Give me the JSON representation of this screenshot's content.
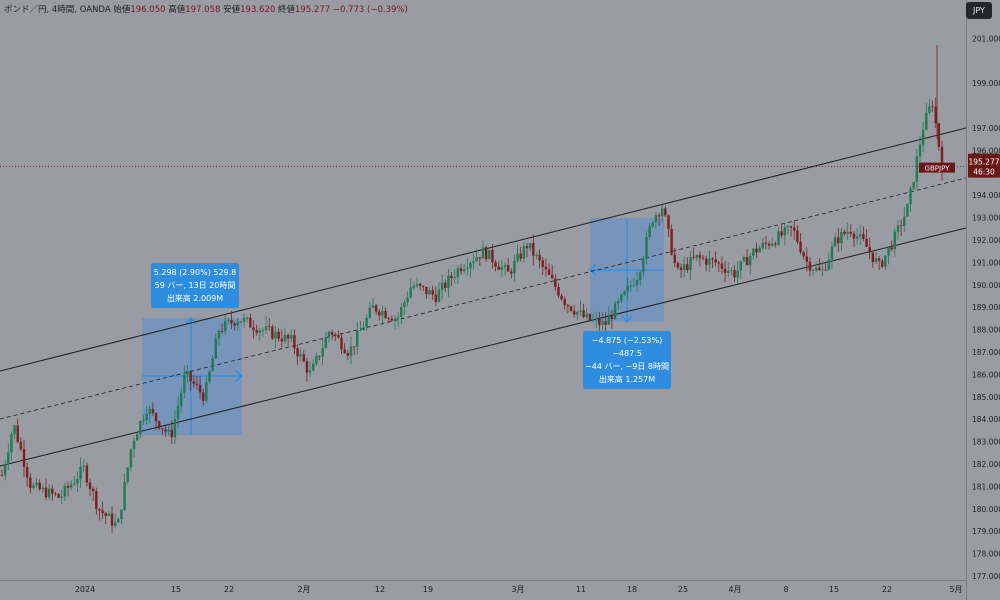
{
  "header": {
    "symbol": "ポンド／円, 4時間, OANDA",
    "open_label": "始値",
    "open_value": "196.050",
    "high_label": "高値",
    "high_value": "197.058",
    "low_label": "安値",
    "low_value": "193.620",
    "close_label": "終値",
    "close_value": "195.277",
    "change_value": "−0.773 (−0.39%)"
  },
  "currency_button": "JPY",
  "price_tag": {
    "symbol": "GBPJPY",
    "price": "195.277",
    "countdown": "46:30"
  },
  "tooltips": {
    "up": {
      "line1": "5.298 (2.90%) 529.8",
      "line2": "59 バー, 13日 20時間",
      "line3": "出来高 2.009M"
    },
    "down": {
      "line1": "−4.875 (−2.53%) −487.5",
      "line2": "−44 バー, −9日 8時間",
      "line3": "出来高 1.257M"
    }
  },
  "colors": {
    "background": "#9a9ca3",
    "up_candle": "#1f7a55",
    "down_candle": "#7a1f1f",
    "measure_box": "#5b8fd0",
    "measure_accent": "#2f8de0",
    "price_tag": "#6b1717"
  },
  "chart_data": {
    "type": "candlestick",
    "symbol": "GBPJPY",
    "timeframe": "4H",
    "x_tick_labels": [
      "2024",
      "15",
      "22",
      "2月",
      "12",
      "19",
      "3月",
      "11",
      "18",
      "25",
      "4月",
      "8",
      "15",
      "22",
      "5月"
    ],
    "y_tick_labels": [
      "177.000",
      "178.000",
      "179.000",
      "180.000",
      "181.000",
      "182.000",
      "183.000",
      "184.000",
      "185.000",
      "186.000",
      "187.000",
      "188.000",
      "189.000",
      "190.000",
      "191.000",
      "192.000",
      "193.000",
      "194.000",
      "195.000",
      "196.000",
      "197.000",
      "199.000",
      "201.000"
    ],
    "ylim": [
      176.5,
      202.0
    ],
    "last_price": 195.277,
    "price_anchors": [
      [
        0,
        181.5
      ],
      [
        0.012,
        183.8
      ],
      [
        0.03,
        181.0
      ],
      [
        0.06,
        180.5
      ],
      [
        0.085,
        181.8
      ],
      [
        0.1,
        180.0
      ],
      [
        0.12,
        179.2
      ],
      [
        0.135,
        183.0
      ],
      [
        0.15,
        184.5
      ],
      [
        0.175,
        183.2
      ],
      [
        0.19,
        186.0
      ],
      [
        0.21,
        185.0
      ],
      [
        0.225,
        188.0
      ],
      [
        0.245,
        188.5
      ],
      [
        0.27,
        188.0
      ],
      [
        0.3,
        187.5
      ],
      [
        0.32,
        186.0
      ],
      [
        0.34,
        188.0
      ],
      [
        0.36,
        187.0
      ],
      [
        0.385,
        189.0
      ],
      [
        0.41,
        188.5
      ],
      [
        0.425,
        190.0
      ],
      [
        0.45,
        189.5
      ],
      [
        0.475,
        190.8
      ],
      [
        0.5,
        191.5
      ],
      [
        0.525,
        190.5
      ],
      [
        0.545,
        191.8
      ],
      [
        0.565,
        190.5
      ],
      [
        0.585,
        189.2
      ],
      [
        0.605,
        188.5
      ],
      [
        0.625,
        188.2
      ],
      [
        0.645,
        189.5
      ],
      [
        0.66,
        190.5
      ],
      [
        0.675,
        193.0
      ],
      [
        0.685,
        193.5
      ],
      [
        0.7,
        190.5
      ],
      [
        0.72,
        191.2
      ],
      [
        0.74,
        191.0
      ],
      [
        0.76,
        190.5
      ],
      [
        0.78,
        191.5
      ],
      [
        0.8,
        192.0
      ],
      [
        0.82,
        192.5
      ],
      [
        0.835,
        191.0
      ],
      [
        0.85,
        190.5
      ],
      [
        0.865,
        192.0
      ],
      [
        0.88,
        192.5
      ],
      [
        0.895,
        191.8
      ],
      [
        0.91,
        190.8
      ],
      [
        0.925,
        192.0
      ],
      [
        0.94,
        193.5
      ],
      [
        0.955,
        197.0
      ],
      [
        0.965,
        198.2
      ],
      [
        0.975,
        195.28
      ]
    ]
  }
}
